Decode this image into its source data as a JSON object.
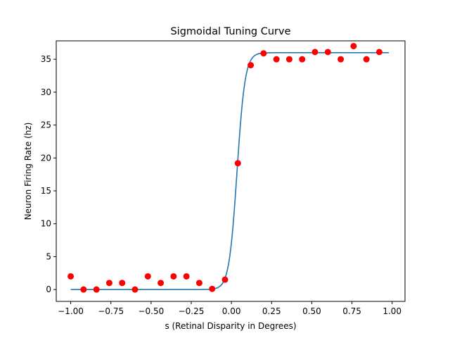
{
  "chart_data": {
    "type": "scatter",
    "title": "Sigmoidal Tuning Curve",
    "xlabel": "s (Retinal Disparity in Degrees)",
    "ylabel": "Neuron Firing Rate (hz)",
    "xlim": [
      -1.09,
      1.08
    ],
    "ylim": [
      -1.8,
      37.8
    ],
    "grid": false,
    "legend": "none",
    "x_ticks": [
      -1.0,
      -0.75,
      -0.5,
      -0.25,
      0.0,
      0.25,
      0.5,
      0.75,
      1.0
    ],
    "x_tick_labels": [
      "−1.00",
      "−0.75",
      "−0.50",
      "−0.25",
      "0.00",
      "0.25",
      "0.50",
      "0.75",
      "1.00"
    ],
    "y_ticks": [
      0,
      5,
      10,
      15,
      20,
      25,
      30,
      35
    ],
    "y_tick_labels": [
      "0",
      "5",
      "10",
      "15",
      "20",
      "25",
      "30",
      "35"
    ],
    "series": [
      {
        "type": "scatter",
        "color": "#ff0000",
        "x": [
          -1.0,
          -0.92,
          -0.84,
          -0.76,
          -0.68,
          -0.6,
          -0.52,
          -0.44,
          -0.36,
          -0.28,
          -0.2,
          -0.12,
          -0.04,
          0.04,
          0.12,
          0.2,
          0.28,
          0.36,
          0.44,
          0.52,
          0.6,
          0.68,
          0.76,
          0.84,
          0.92
        ],
        "y": [
          2,
          0,
          0,
          1,
          1,
          0,
          2,
          1,
          2,
          2,
          1,
          0.1,
          1.5,
          19.2,
          34.1,
          35.9,
          35,
          35,
          35,
          36.1,
          36.1,
          35,
          37,
          35,
          36.1
        ]
      },
      {
        "type": "line",
        "color": "#1f77b4",
        "model": "logistic",
        "baseline": 0.0,
        "amplitude": 36.0,
        "midpoint": 0.035,
        "slope": 40.0,
        "x_range": [
          -1.0,
          0.98
        ]
      }
    ]
  }
}
